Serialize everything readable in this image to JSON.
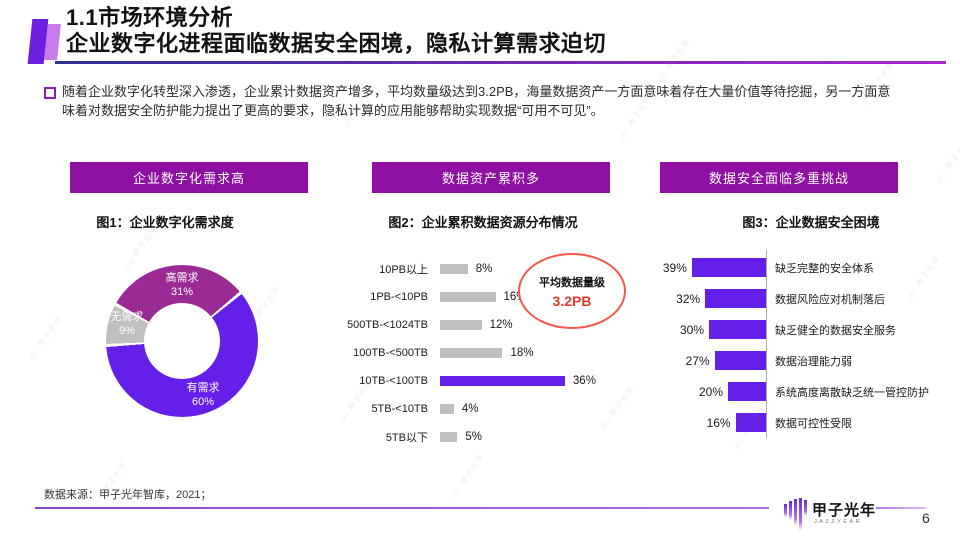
{
  "slide": {
    "title_line1": "1.1市场环境分析",
    "title_line2": "企业数字化进程面临数据安全困境，隐私计算需求迫切",
    "intro_line1": "随着企业数字化转型深入渗透，企业累计数据资产增多，平均数量级达到3.2PB，海量数据资产一方面意味着存在大量价值等待挖掘，另一方面意",
    "intro_line2": "味着对数据安全防护能力提出了更高的要求，隐私计算的应用能够帮助实现数据“可用不可见”。",
    "source_note": "数据来源：甲子光年智库，2021；",
    "logo_text": "甲子光年",
    "logo_subtext": "JAZZYEAR",
    "watermark_text": "甲子光年",
    "page_number": "6"
  },
  "sections": [
    {
      "banner": "企业数字化需求高",
      "caption": "图1：企业数字化需求度"
    },
    {
      "banner": "数据资产累积多",
      "caption": "图2：企业累积数据资源分布情况"
    },
    {
      "banner": "数据安全面临多重挑战",
      "caption": "图3：企业数据安全困境"
    }
  ],
  "colors": {
    "banner_purple": "#8E10A2",
    "accent_violet": "#6420E8",
    "accent_magenta": "#9B2B94",
    "neutral_gray": "#BFBFBF",
    "annotation_red": "#F2594B",
    "value_red": "#E8352B"
  },
  "chart_data": [
    {
      "type": "pie",
      "subtype": "donut",
      "title": "图1：企业数字化需求度",
      "start_angle_deg": -61,
      "slices": [
        {
          "label": "高需求",
          "value": 31,
          "color": "#9B2B94"
        },
        {
          "label": "有需求",
          "value": 60,
          "color": "#6420E8"
        },
        {
          "label": "无需求",
          "value": 9,
          "color": "#BFBFBF"
        }
      ]
    },
    {
      "type": "bar",
      "orientation": "horizontal",
      "title": "图2：企业累积数据资源分布情况",
      "categories": [
        "10PB以上",
        "1PB-<10PB",
        "500TB-<1024TB",
        "100TB-<500TB",
        "10TB-<100TB",
        "5TB-<10TB",
        "5TB以下"
      ],
      "values": [
        8,
        16,
        12,
        18,
        36,
        4,
        5
      ],
      "unit": "%",
      "bar_color": "#BFBFBF",
      "highlight_index": 4,
      "highlight_color": "#6420E8",
      "xlim": [
        0,
        40
      ],
      "annotation": {
        "label": "平均数据量级",
        "value": "3.2PB"
      }
    },
    {
      "type": "bar",
      "orientation": "horizontal-right-aligned",
      "title": "图3：企业数据安全困境",
      "categories": [
        "缺乏完整的安全体系",
        "数据风险应对机制落后",
        "缺乏健全的数据安全服务",
        "数据治理能力弱",
        "系统高度离散缺乏统一管控防护",
        "数据可控性受限"
      ],
      "values": [
        39,
        32,
        30,
        27,
        20,
        16
      ],
      "unit": "%",
      "bar_color": "#6420E8",
      "xlim": [
        0,
        40
      ]
    }
  ]
}
